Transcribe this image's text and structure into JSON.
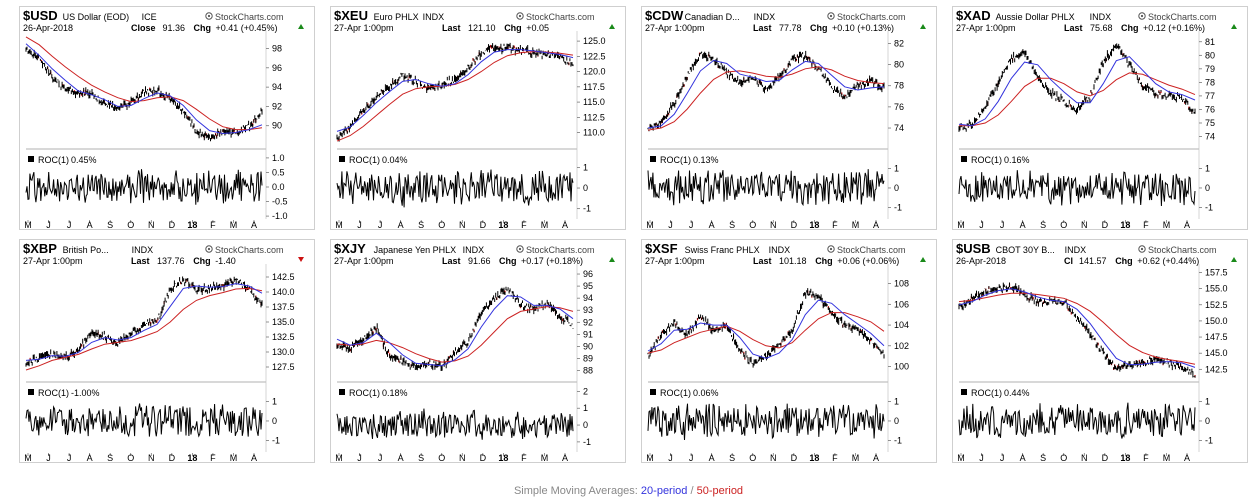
{
  "legend": {
    "prefix": "Simple Moving Averages: ",
    "sma20": "20-period",
    "separator": " / ",
    "sma50": "50-period",
    "sma20_color": "#3333dd",
    "sma50_color": "#cc2222"
  },
  "watermark": "StockCharts.com",
  "chart_data": [
    {
      "type": "line",
      "symbol": "$USD",
      "name": "US Dollar (EOD)",
      "exchange": "ICE",
      "date": "26-Apr-2018",
      "last_label": "Close",
      "last": "91.36",
      "chg": "+0.41 (+0.45%)",
      "chg_dir": "up",
      "price_ticks": [
        "98",
        "96",
        "94",
        "92",
        "90"
      ],
      "ylim": [
        87.9,
        99.4
      ],
      "prices": [
        97.8,
        96.9,
        95.1,
        93.8,
        93.3,
        93.3,
        92.3,
        91.8,
        92.4,
        93.5,
        93.7,
        92.8,
        91.5,
        89.4,
        88.9,
        89.4,
        89.2,
        89.9,
        91.4
      ],
      "sma20": [
        98.5,
        97.3,
        95.9,
        94.7,
        93.6,
        93.2,
        92.7,
        92.0,
        92.1,
        92.8,
        93.4,
        93.1,
        92.1,
        90.6,
        89.5,
        89.2,
        89.3,
        89.6,
        90.1
      ],
      "sma50": [
        99.2,
        98.4,
        97.2,
        96.1,
        95.1,
        94.2,
        93.5,
        92.9,
        92.5,
        92.6,
        92.9,
        93.0,
        92.6,
        91.7,
        90.7,
        89.9,
        89.6,
        89.6,
        89.8
      ],
      "roc_label": "ROC(1)",
      "roc_value": "0.45%",
      "roc_ticks": [
        "1.0",
        "0.5",
        "0.0",
        "-0.5",
        "-1.0"
      ],
      "roc_range": [
        -1.1,
        1.1
      ],
      "roc_amp": 0.65,
      "x_ticks": [
        "M",
        "J",
        "J",
        "A",
        "S",
        "O",
        "N",
        "D",
        "18",
        "F",
        "M",
        "A"
      ]
    },
    {
      "type": "line",
      "symbol": "$XEU",
      "name": "Euro PHLX",
      "exchange": "INDX",
      "date": "27-Apr 1:00pm",
      "last_label": "Last",
      "last": "121.10",
      "chg": "+0.05",
      "chg_dir": "up",
      "price_ticks": [
        "125.0",
        "122.5",
        "120.0",
        "117.5",
        "115.0",
        "112.5",
        "110.0"
      ],
      "ylim": [
        107.8,
        126.0
      ],
      "prices": [
        109.0,
        110.8,
        113.6,
        115.8,
        117.5,
        119.5,
        118.4,
        117.2,
        117.9,
        118.6,
        120.7,
        123.0,
        124.0,
        123.8,
        123.5,
        123.2,
        122.8,
        122.4,
        121.1
      ],
      "sma20": [
        110.2,
        110.9,
        112.8,
        114.9,
        116.7,
        118.4,
        118.7,
        118.0,
        117.6,
        118.0,
        119.5,
        121.6,
        123.2,
        123.6,
        123.6,
        123.4,
        123.1,
        122.8,
        122.3
      ],
      "sma50": [
        108.6,
        109.5,
        111.0,
        112.8,
        114.6,
        116.3,
        117.2,
        117.5,
        117.6,
        117.9,
        118.7,
        120.0,
        121.5,
        122.6,
        123.1,
        123.3,
        123.2,
        123.0,
        122.7
      ],
      "roc_label": "ROC(1)",
      "roc_value": "0.04%",
      "roc_ticks": [
        "1",
        "0",
        "-1"
      ],
      "roc_range": [
        -1.5,
        1.6
      ],
      "roc_amp": 0.95,
      "x_ticks": [
        "M",
        "J",
        "J",
        "A",
        "S",
        "O",
        "N",
        "D",
        "18",
        "F",
        "M",
        "A"
      ]
    },
    {
      "type": "line",
      "symbol": "$CDW",
      "name": "Canadian D...",
      "exchange": "INDX",
      "date": "27-Apr 1:00pm",
      "last_label": "Last",
      "last": "77.78",
      "chg": "+0.10 (+0.13%)",
      "chg_dir": "up",
      "price_ticks": [
        "82",
        "80",
        "78",
        "76",
        "74"
      ],
      "ylim": [
        72.3,
        82.8
      ],
      "prices": [
        73.9,
        74.6,
        76.3,
        78.9,
        81.0,
        80.5,
        79.2,
        78.3,
        78.9,
        77.6,
        78.8,
        80.4,
        80.9,
        79.6,
        77.9,
        77.0,
        78.0,
        78.4,
        77.8
      ],
      "sma20": [
        74.0,
        74.2,
        75.3,
        77.3,
        79.4,
        80.4,
        80.1,
        79.1,
        78.8,
        78.4,
        78.5,
        79.5,
        80.3,
        80.1,
        79.0,
        77.9,
        77.6,
        77.8,
        77.9
      ],
      "sma50": [
        73.8,
        74.0,
        74.6,
        75.8,
        77.3,
        78.6,
        79.3,
        79.4,
        79.2,
        78.9,
        78.8,
        79.1,
        79.6,
        79.8,
        79.5,
        78.9,
        78.5,
        78.3,
        78.2
      ],
      "roc_label": "ROC(1)",
      "roc_value": "0.13%",
      "roc_ticks": [
        "1",
        "0",
        "-1"
      ],
      "roc_range": [
        -1.6,
        1.7
      ],
      "roc_amp": 1.0,
      "x_ticks": [
        "M",
        "J",
        "J",
        "A",
        "S",
        "O",
        "N",
        "D",
        "18",
        "F",
        "M",
        "A"
      ]
    },
    {
      "type": "line",
      "symbol": "$XAD",
      "name": "Aussie Dollar PHLX",
      "exchange": "INDX",
      "date": "27-Apr 1:00pm",
      "last_label": "Last",
      "last": "75.68",
      "chg": "+0.12 (+0.16%)",
      "chg_dir": "up",
      "price_ticks": [
        "81",
        "80",
        "79",
        "78",
        "77",
        "76",
        "75",
        "74"
      ],
      "ylim": [
        73.3,
        81.5
      ],
      "prices": [
        74.6,
        74.9,
        76.2,
        78.0,
        79.8,
        80.2,
        78.4,
        77.2,
        76.6,
        75.9,
        77.0,
        79.5,
        80.8,
        79.3,
        77.8,
        77.2,
        77.0,
        76.9,
        75.7
      ],
      "sma20": [
        74.9,
        74.8,
        75.3,
        76.6,
        78.3,
        79.5,
        79.3,
        78.2,
        77.3,
        76.5,
        76.5,
        77.9,
        79.6,
        79.9,
        78.9,
        77.9,
        77.3,
        77.1,
        76.7
      ],
      "sma50": [
        74.8,
        74.8,
        75.0,
        75.6,
        76.6,
        77.7,
        78.3,
        78.3,
        77.9,
        77.3,
        77.0,
        77.4,
        78.2,
        78.7,
        78.6,
        78.2,
        77.8,
        77.5,
        77.1
      ],
      "roc_label": "ROC(1)",
      "roc_value": "0.16%",
      "roc_ticks": [
        "1",
        "0",
        "-1"
      ],
      "roc_range": [
        -1.6,
        1.7
      ],
      "roc_amp": 1.0,
      "x_ticks": [
        "M",
        "J",
        "J",
        "A",
        "S",
        "O",
        "N",
        "D",
        "18",
        "F",
        "M",
        "A"
      ]
    },
    {
      "type": "line",
      "symbol": "$XBP",
      "name": "British Po...",
      "exchange": "INDX",
      "date": "27-Apr 1:00pm",
      "last_label": "Last",
      "last": "137.76",
      "chg": "-1.40",
      "chg_dir": "down",
      "price_ticks": [
        "142.5",
        "140.0",
        "137.5",
        "135.0",
        "132.5",
        "130.0",
        "127.5"
      ],
      "ylim": [
        125.5,
        144.0
      ],
      "prices": [
        128.2,
        129.0,
        129.8,
        129.0,
        130.5,
        133.0,
        132.5,
        131.5,
        133.0,
        134.5,
        135.2,
        140.5,
        142.0,
        140.5,
        140.5,
        141.0,
        142.0,
        140.5,
        137.8
      ],
      "sma20": [
        128.6,
        128.8,
        129.4,
        129.3,
        129.9,
        131.6,
        132.4,
        132.0,
        132.4,
        133.6,
        134.6,
        137.6,
        140.6,
        141.0,
        140.8,
        140.9,
        141.4,
        141.0,
        139.8
      ],
      "sma50": [
        127.0,
        127.7,
        128.6,
        129.1,
        129.6,
        130.5,
        131.3,
        131.6,
        131.9,
        132.6,
        133.4,
        135.0,
        137.1,
        138.6,
        139.4,
        139.9,
        140.5,
        140.6,
        140.2
      ],
      "roc_label": "ROC(1)",
      "roc_value": "-1.00%",
      "roc_ticks": [
        "1",
        "0",
        "-1"
      ],
      "roc_range": [
        -1.6,
        1.7
      ],
      "roc_amp": 1.0,
      "x_ticks": [
        "M",
        "J",
        "J",
        "A",
        "S",
        "O",
        "N",
        "D",
        "18",
        "F",
        "M",
        "A"
      ]
    },
    {
      "type": "line",
      "symbol": "$XJY",
      "name": "Japanese Yen PHLX",
      "exchange": "INDX",
      "date": "27-Apr 1:00pm",
      "last_label": "Last",
      "last": "91.66",
      "chg": "+0.17 (+0.18%)",
      "chg_dir": "up",
      "price_ticks": [
        "96",
        "95",
        "94",
        "93",
        "92",
        "91",
        "90",
        "89",
        "88"
      ],
      "ylim": [
        87.3,
        96.5
      ],
      "prices": [
        90.2,
        89.8,
        90.6,
        91.6,
        89.2,
        88.8,
        88.2,
        88.6,
        88.3,
        89.5,
        90.4,
        92.8,
        94.0,
        94.8,
        93.5,
        93.0,
        93.6,
        92.5,
        91.7
      ],
      "sma20": [
        90.6,
        90.1,
        90.3,
        91.1,
        90.3,
        89.3,
        88.6,
        88.5,
        88.4,
        88.9,
        89.8,
        91.6,
        93.1,
        94.2,
        94.1,
        93.4,
        93.4,
        93.1,
        92.3
      ],
      "sma50": [
        90.2,
        90.1,
        90.2,
        90.5,
        90.3,
        89.9,
        89.4,
        89.0,
        88.7,
        88.8,
        89.2,
        90.1,
        91.2,
        92.3,
        92.9,
        93.1,
        93.3,
        93.2,
        92.9
      ],
      "roc_label": "ROC(1)",
      "roc_value": "0.18%",
      "roc_ticks": [
        "2",
        "1",
        "0",
        "-1"
      ],
      "roc_range": [
        -1.6,
        2.2
      ],
      "roc_amp": 1.0,
      "x_ticks": [
        "M",
        "J",
        "J",
        "A",
        "S",
        "O",
        "N",
        "D",
        "18",
        "F",
        "M",
        "A"
      ]
    },
    {
      "type": "line",
      "symbol": "$XSF",
      "name": "Swiss Franc PHLX",
      "exchange": "INDX",
      "date": "27-Apr 1:00pm",
      "last_label": "Last",
      "last": "101.18",
      "chg": "+0.06 (+0.06%)",
      "chg_dir": "up",
      "price_ticks": [
        "108",
        "106",
        "104",
        "102",
        "100"
      ],
      "ylim": [
        98.8,
        109.5
      ],
      "prices": [
        101.0,
        103.0,
        104.3,
        103.0,
        104.8,
        103.5,
        104.0,
        101.5,
        100.2,
        101.0,
        102.0,
        103.5,
        107.0,
        106.8,
        105.2,
        104.0,
        103.5,
        102.5,
        101.2
      ],
      "sma20": [
        101.5,
        102.2,
        103.5,
        103.6,
        104.2,
        104.0,
        104.0,
        102.8,
        101.2,
        100.8,
        101.3,
        102.6,
        105.0,
        106.4,
        106.1,
        105.0,
        104.1,
        103.2,
        102.0
      ],
      "sma50": [
        101.3,
        101.6,
        102.3,
        102.8,
        103.3,
        103.6,
        103.9,
        103.4,
        102.6,
        102.0,
        101.8,
        102.3,
        103.5,
        104.6,
        105.2,
        105.2,
        104.8,
        104.3,
        103.4
      ],
      "roc_label": "ROC(1)",
      "roc_value": "0.06%",
      "roc_ticks": [
        "1",
        "0",
        "-1"
      ],
      "roc_range": [
        -1.6,
        1.7
      ],
      "roc_amp": 1.0,
      "x_ticks": [
        "M",
        "J",
        "J",
        "A",
        "S",
        "O",
        "N",
        "D",
        "18",
        "F",
        "M",
        "A"
      ]
    },
    {
      "type": "line",
      "symbol": "$USB",
      "name": "CBOT 30Y B...",
      "exchange": "INDX",
      "date": "26-Apr-2018",
      "last_label": "Cl",
      "last": "141.57",
      "chg": "+0.62 (+0.44%)",
      "chg_dir": "up",
      "price_ticks": [
        "157.5",
        "155.0",
        "152.5",
        "150.0",
        "147.5",
        "145.0",
        "142.5"
      ],
      "ylim": [
        141.0,
        158.2
      ],
      "prices": [
        152.0,
        153.5,
        154.6,
        155.0,
        155.3,
        154.0,
        153.0,
        153.0,
        153.0,
        150.5,
        148.0,
        145.0,
        142.5,
        143.2,
        143.5,
        144.0,
        143.5,
        143.0,
        141.6
      ],
      "sma20": [
        152.5,
        153.0,
        154.0,
        154.7,
        155.0,
        154.5,
        153.7,
        153.2,
        153.0,
        151.8,
        149.6,
        146.8,
        144.2,
        143.2,
        143.3,
        143.6,
        143.7,
        143.5,
        142.8
      ],
      "sma50": [
        153.0,
        153.2,
        153.6,
        154.0,
        154.3,
        154.3,
        154.1,
        153.8,
        153.5,
        152.7,
        151.5,
        149.8,
        147.9,
        146.2,
        145.1,
        144.4,
        144.0,
        143.7,
        143.3
      ],
      "roc_label": "ROC(1)",
      "roc_value": "0.44%",
      "roc_ticks": [
        "1",
        "0",
        "-1"
      ],
      "roc_range": [
        -1.6,
        1.7
      ],
      "roc_amp": 1.0,
      "x_ticks": [
        "M",
        "J",
        "J",
        "A",
        "S",
        "O",
        "N",
        "D",
        "18",
        "F",
        "M",
        "A"
      ]
    }
  ]
}
